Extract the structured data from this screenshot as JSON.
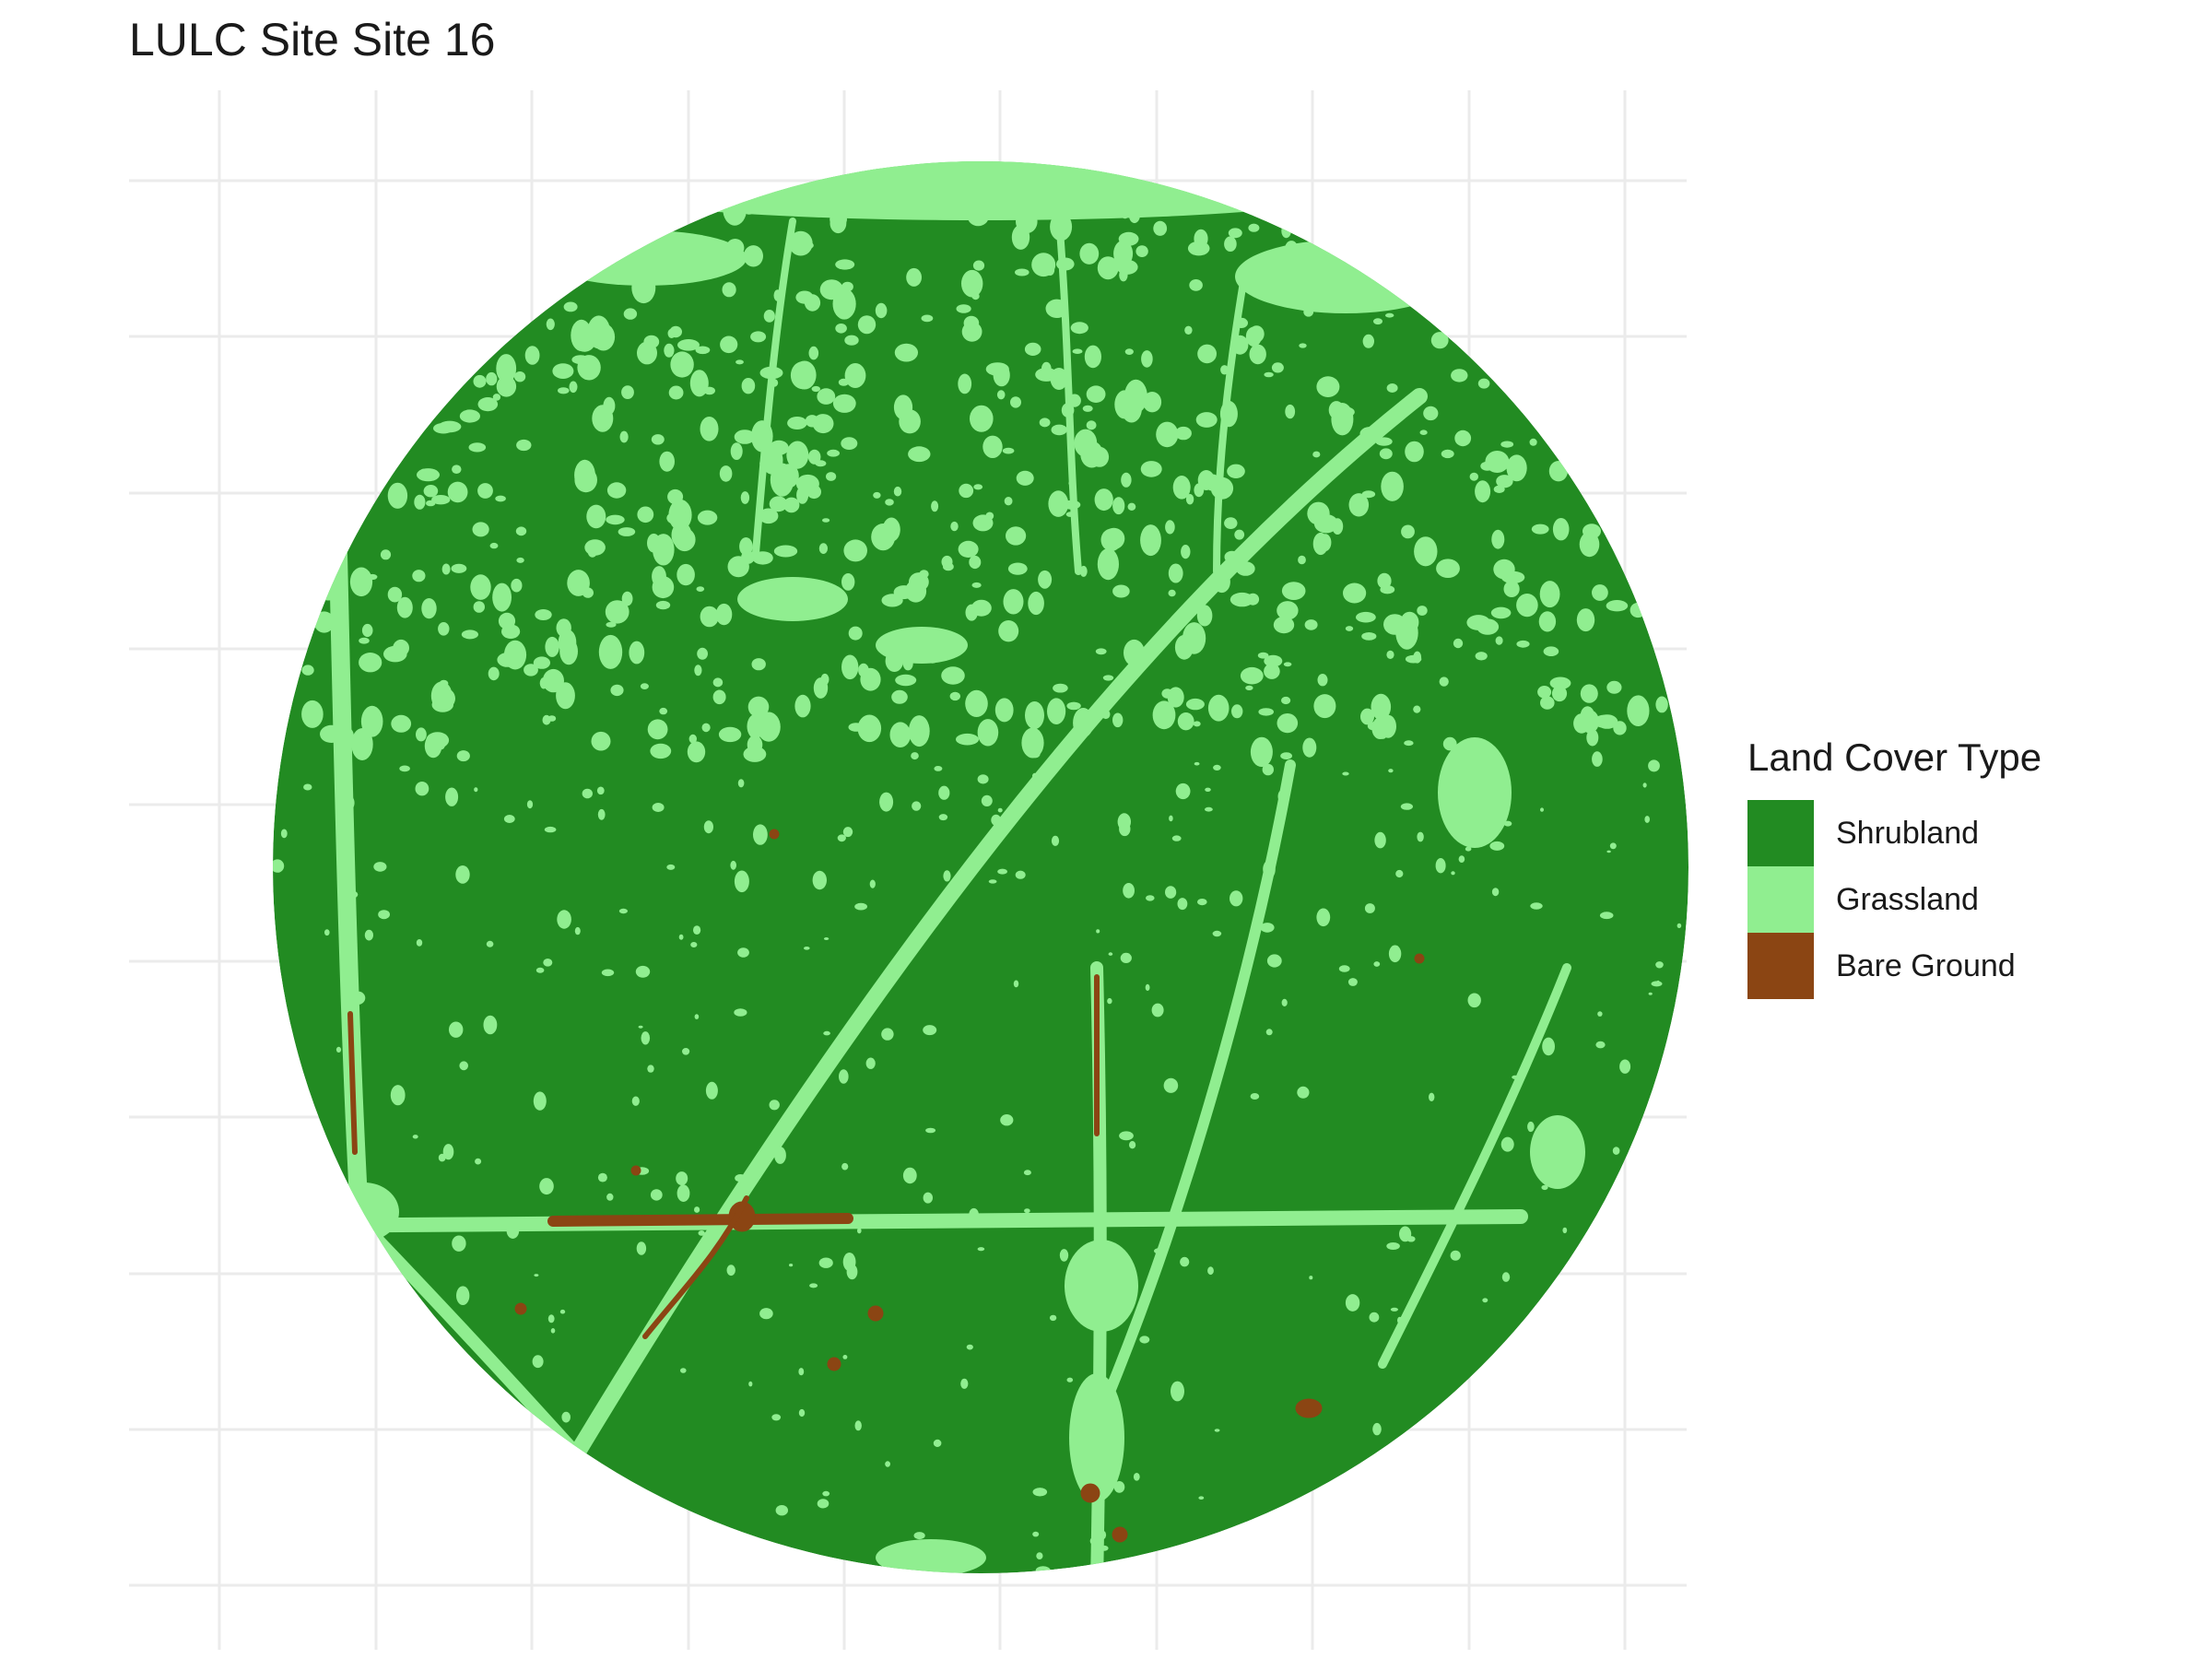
{
  "map": {
    "title": "LULC Site Site 16",
    "legend": {
      "title": "Land Cover Type",
      "items": [
        {
          "label": "Shrubland",
          "color": "#228B22"
        },
        {
          "label": "Grassland",
          "color": "#90EE90"
        },
        {
          "label": "Bare Ground",
          "color": "#8B4513"
        }
      ]
    },
    "background": "#ffffff",
    "gridline_color": "#ebebeb",
    "grid": true,
    "legend_placement": "right"
  }
}
